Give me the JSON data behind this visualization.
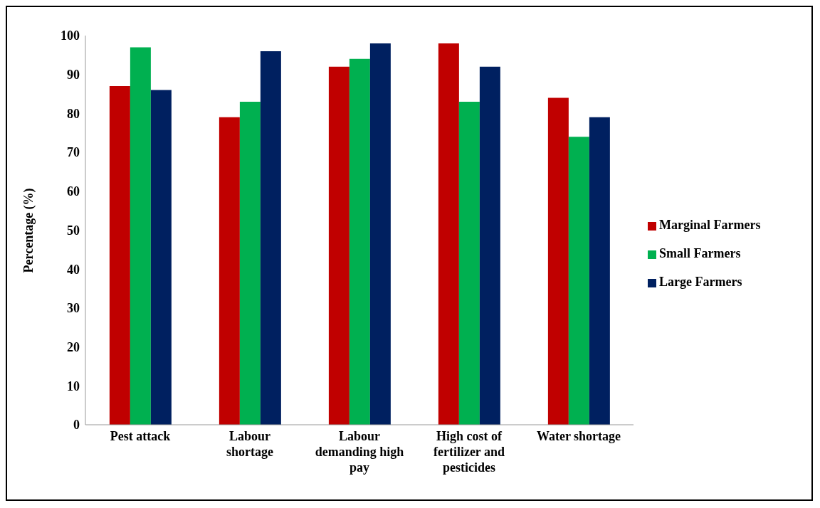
{
  "chart_data": {
    "type": "bar",
    "ylabel": "Percentage (%)",
    "categories": [
      "Pest attack",
      "Labour shortage",
      "Labour demanding high pay",
      "High cost of fertilizer and pesticides",
      "Water shortage"
    ],
    "series": [
      {
        "name": "Marginal Farmers",
        "color": "#c00000",
        "values": [
          87,
          79,
          92,
          98,
          84
        ]
      },
      {
        "name": "Small Farmers",
        "color": "#00b050",
        "values": [
          97,
          83,
          94,
          83,
          74
        ]
      },
      {
        "name": "Large Farmers",
        "color": "#002060",
        "values": [
          86,
          96,
          98,
          92,
          79
        ]
      }
    ],
    "ylim": [
      0,
      100
    ],
    "yticks": [
      0,
      10,
      20,
      30,
      40,
      50,
      60,
      70,
      80,
      90,
      100
    ],
    "grid": false,
    "legend": "right"
  }
}
